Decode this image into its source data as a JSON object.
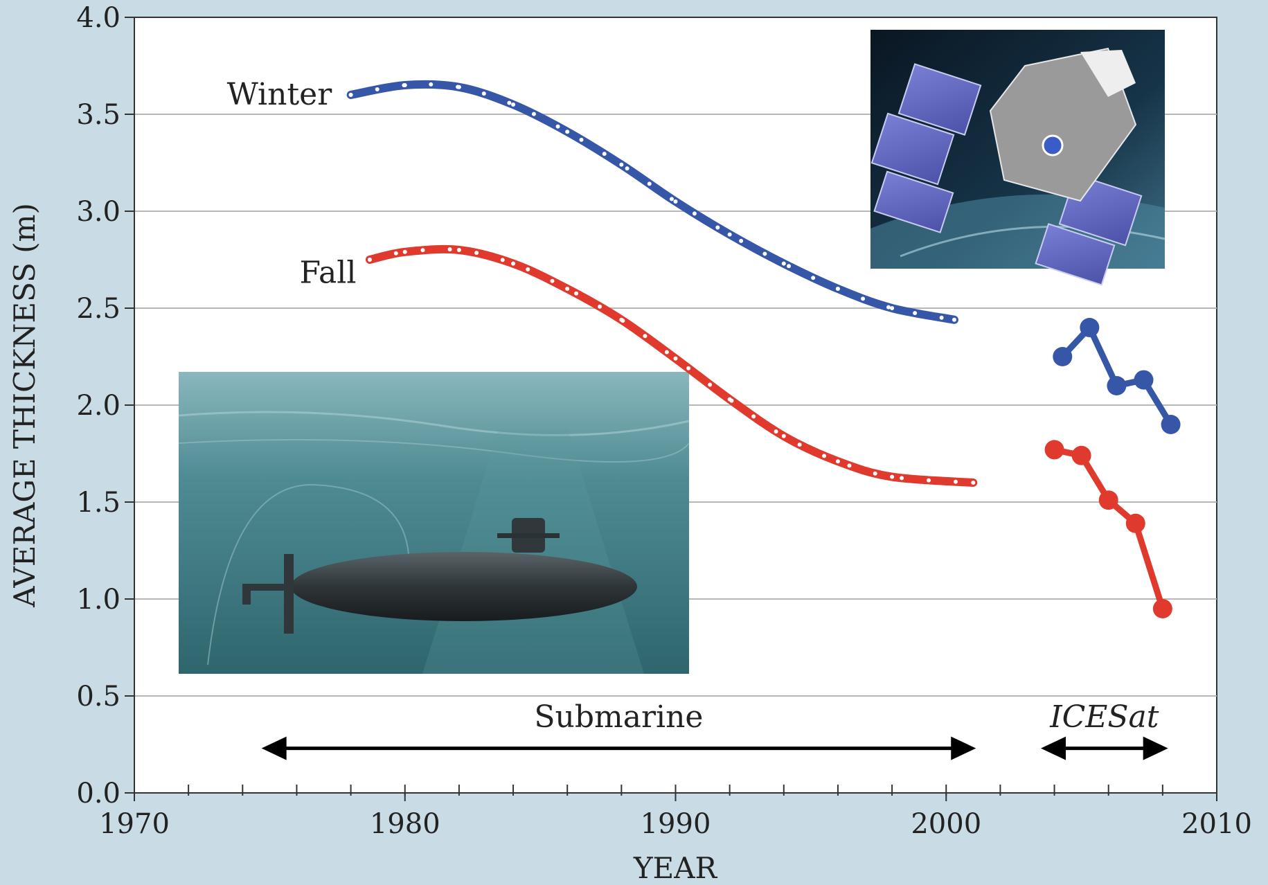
{
  "chart_data": {
    "type": "line",
    "xlabel": "YEAR",
    "ylabel": "AVERAGE THICKNESS (m)",
    "xlim": [
      1970,
      2010
    ],
    "ylim": [
      0.0,
      4.0
    ],
    "x_ticks": [
      "1970",
      "1980",
      "1990",
      "2000",
      "2010"
    ],
    "y_ticks": [
      "0.0",
      "0.5",
      "1.0",
      "1.5",
      "2.0",
      "2.5",
      "3.0",
      "3.5",
      "4.0"
    ],
    "grid": true,
    "colors": {
      "winter": "#3656a8",
      "fall": "#e03a2e",
      "grid": "#b7b7b7"
    },
    "series": [
      {
        "name": "Winter",
        "source": "Submarine",
        "style": "dotted-curve",
        "x": [
          1978,
          1980,
          1982,
          1984,
          1986,
          1988,
          1990,
          1992,
          1994,
          1996,
          1998,
          2000.3
        ],
        "y": [
          3.6,
          3.65,
          3.64,
          3.55,
          3.41,
          3.24,
          3.05,
          2.88,
          2.73,
          2.6,
          2.5,
          2.44
        ]
      },
      {
        "name": "Fall",
        "source": "Submarine",
        "style": "dotted-curve",
        "x": [
          1978.7,
          1980,
          1982,
          1984,
          1986,
          1988,
          1990,
          1992,
          1994,
          1996,
          1998,
          2001
        ],
        "y": [
          2.75,
          2.79,
          2.8,
          2.73,
          2.6,
          2.44,
          2.24,
          2.03,
          1.84,
          1.71,
          1.63,
          1.6
        ]
      },
      {
        "name": "Winter",
        "source": "ICESat",
        "style": "markers",
        "x": [
          2004.3,
          2005.3,
          2006.3,
          2007.3,
          2008.3
        ],
        "y": [
          2.25,
          2.4,
          2.1,
          2.13,
          1.9
        ]
      },
      {
        "name": "Fall",
        "source": "ICESat",
        "style": "markers",
        "x": [
          2004,
          2005,
          2006,
          2007,
          2008
        ],
        "y": [
          1.77,
          1.74,
          1.51,
          1.39,
          0.95
        ]
      }
    ],
    "annotations": [
      {
        "label": "Winter",
        "anchor": [
          1977.3,
          3.55
        ],
        "align": "end"
      },
      {
        "label": "Fall",
        "anchor": [
          1978.2,
          2.63
        ],
        "align": "end"
      }
    ],
    "periods": [
      {
        "label": "Submarine",
        "italic": false,
        "from": 1974.7,
        "to": 2001.1,
        "y": 0.23,
        "label_y": 0.34
      },
      {
        "label": "ICESat",
        "italic": true,
        "from": 2003.5,
        "to": 2008.2,
        "y": 0.23,
        "label_y": 0.34
      }
    ]
  }
}
